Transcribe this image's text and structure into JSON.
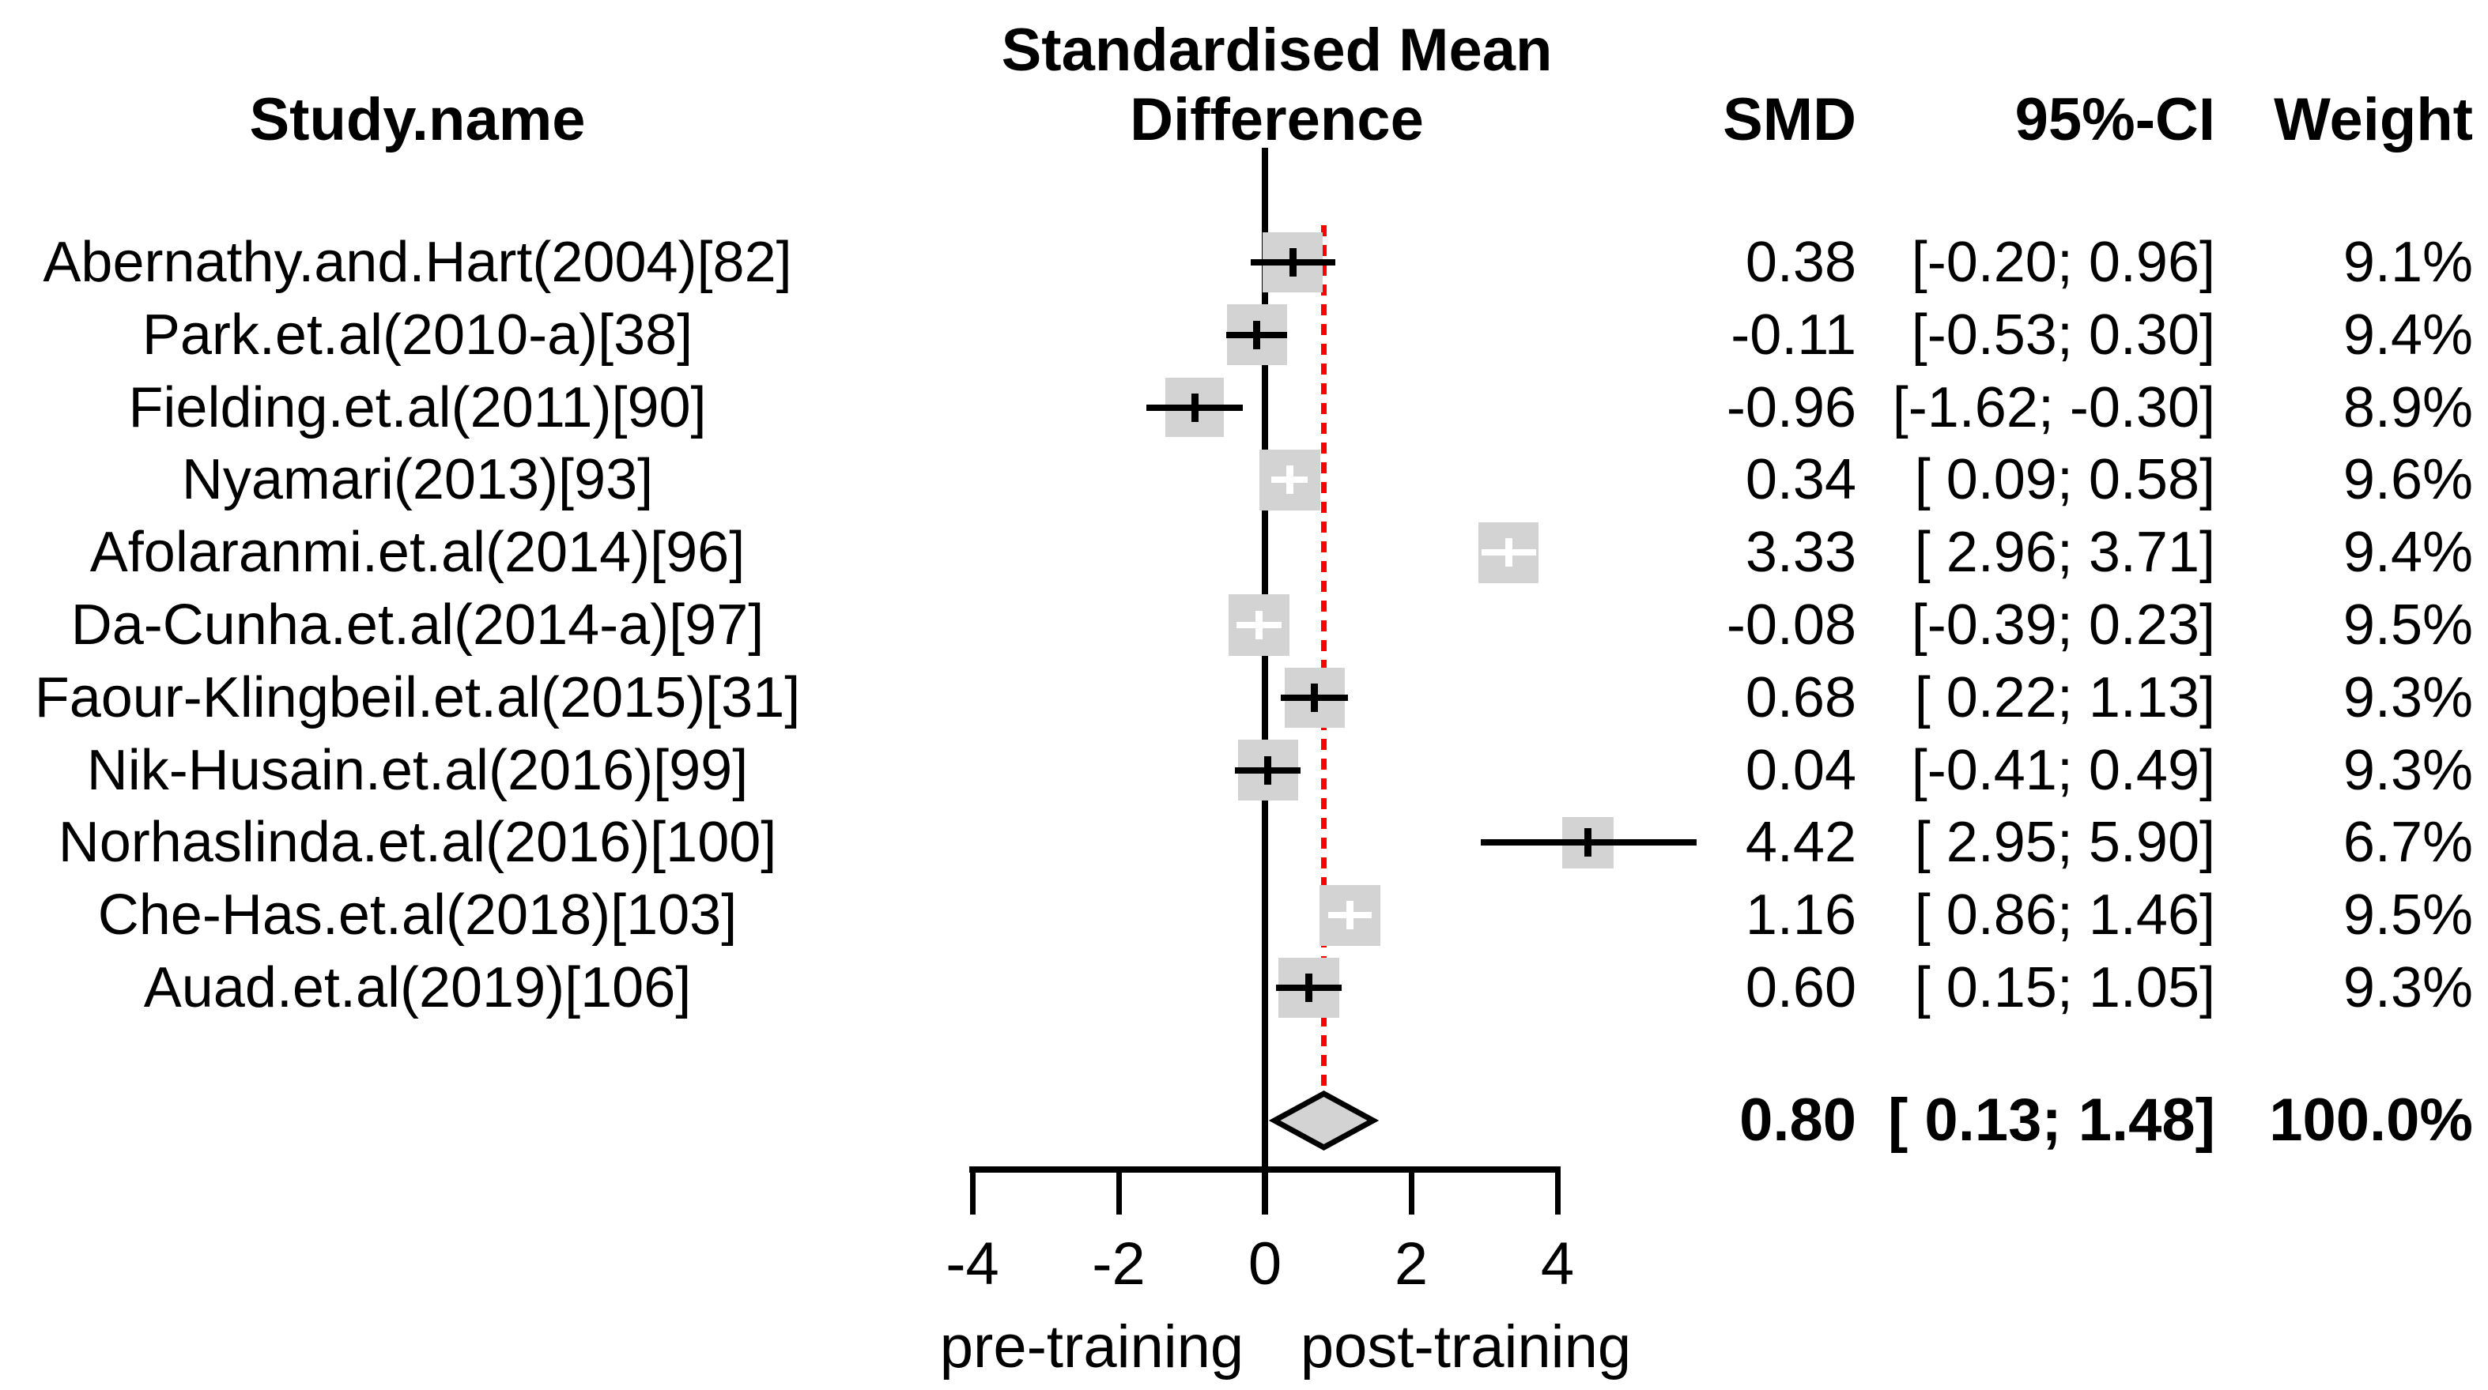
{
  "title": {
    "line1": "Standardised Mean",
    "line2": "Difference"
  },
  "columns": {
    "study": "Study.name",
    "smd": "SMD",
    "ci": "95%-CI",
    "weight": "Weight"
  },
  "axis": {
    "ticks": [
      "-4",
      "-2",
      "0",
      "2",
      "4"
    ],
    "left_label": "pre-training",
    "right_label": "post-training"
  },
  "summary": {
    "smd_text": "0.80",
    "ci_text": "[ 0.13; 1.48]",
    "weight_text": "100.0%"
  },
  "colors": {
    "square": "#d3d3d3",
    "diamond_fill": "#d3d3d3",
    "diamond_border": "#000000",
    "ci_line": "#000000",
    "zero_line": "#000000",
    "ref_line": "#ff0000",
    "inner_marker": "#ffffff"
  },
  "chart_data": {
    "type": "forest",
    "x_ticks": [
      -4,
      -2,
      0,
      2,
      4
    ],
    "xlim": [
      -4,
      4
    ],
    "zero_line_x": 0,
    "ref_line_x": 0.8,
    "xlabel_left": "pre-training",
    "xlabel_right": "post-training",
    "pooled": {
      "smd": 0.8,
      "lo": 0.13,
      "hi": 1.48,
      "weight": 100.0
    },
    "studies": [
      {
        "name": "Abernathy.and.Hart(2004)[82]",
        "smd": 0.38,
        "lo": -0.2,
        "hi": 0.96,
        "weight": 9.1,
        "smd_text": "0.38",
        "ci_text": "[-0.20; 0.96]",
        "weight_text": "9.1%"
      },
      {
        "name": "Park.et.al(2010-a)[38]",
        "smd": -0.11,
        "lo": -0.53,
        "hi": 0.3,
        "weight": 9.4,
        "smd_text": "-0.11",
        "ci_text": "[-0.53; 0.30]",
        "weight_text": "9.4%"
      },
      {
        "name": "Fielding.et.al(2011)[90]",
        "smd": -0.96,
        "lo": -1.62,
        "hi": -0.3,
        "weight": 8.9,
        "smd_text": "-0.96",
        "ci_text": "[-1.62; -0.30]",
        "weight_text": "8.9%"
      },
      {
        "name": "Nyamari(2013)[93]",
        "smd": 0.34,
        "lo": 0.09,
        "hi": 0.58,
        "weight": 9.6,
        "smd_text": "0.34",
        "ci_text": "[ 0.09; 0.58]",
        "weight_text": "9.6%"
      },
      {
        "name": "Afolaranmi.et.al(2014)[96]",
        "smd": 3.33,
        "lo": 2.96,
        "hi": 3.71,
        "weight": 9.4,
        "smd_text": "3.33",
        "ci_text": "[ 2.96; 3.71]",
        "weight_text": "9.4%"
      },
      {
        "name": "Da-Cunha.et.al(2014-a)[97]",
        "smd": -0.08,
        "lo": -0.39,
        "hi": 0.23,
        "weight": 9.5,
        "smd_text": "-0.08",
        "ci_text": "[-0.39; 0.23]",
        "weight_text": "9.5%"
      },
      {
        "name": "Faour-Klingbeil.et.al(2015)[31]",
        "smd": 0.68,
        "lo": 0.22,
        "hi": 1.13,
        "weight": 9.3,
        "smd_text": "0.68",
        "ci_text": "[ 0.22; 1.13]",
        "weight_text": "9.3%"
      },
      {
        "name": "Nik-Husain.et.al(2016)[99]",
        "smd": 0.04,
        "lo": -0.41,
        "hi": 0.49,
        "weight": 9.3,
        "smd_text": "0.04",
        "ci_text": "[-0.41; 0.49]",
        "weight_text": "9.3%"
      },
      {
        "name": "Norhaslinda.et.al(2016)[100]",
        "smd": 4.42,
        "lo": 2.95,
        "hi": 5.9,
        "weight": 6.7,
        "smd_text": "4.42",
        "ci_text": "[ 2.95; 5.90]",
        "weight_text": "6.7%"
      },
      {
        "name": "Che-Has.et.al(2018)[103]",
        "smd": 1.16,
        "lo": 0.86,
        "hi": 1.46,
        "weight": 9.5,
        "smd_text": "1.16",
        "ci_text": "[ 0.86; 1.46]",
        "weight_text": "9.5%"
      },
      {
        "name": "Auad.et.al(2019)[106]",
        "smd": 0.6,
        "lo": 0.15,
        "hi": 1.05,
        "weight": 9.3,
        "smd_text": "0.60",
        "ci_text": "[ 0.15; 1.05]",
        "weight_text": "9.3%"
      }
    ]
  }
}
